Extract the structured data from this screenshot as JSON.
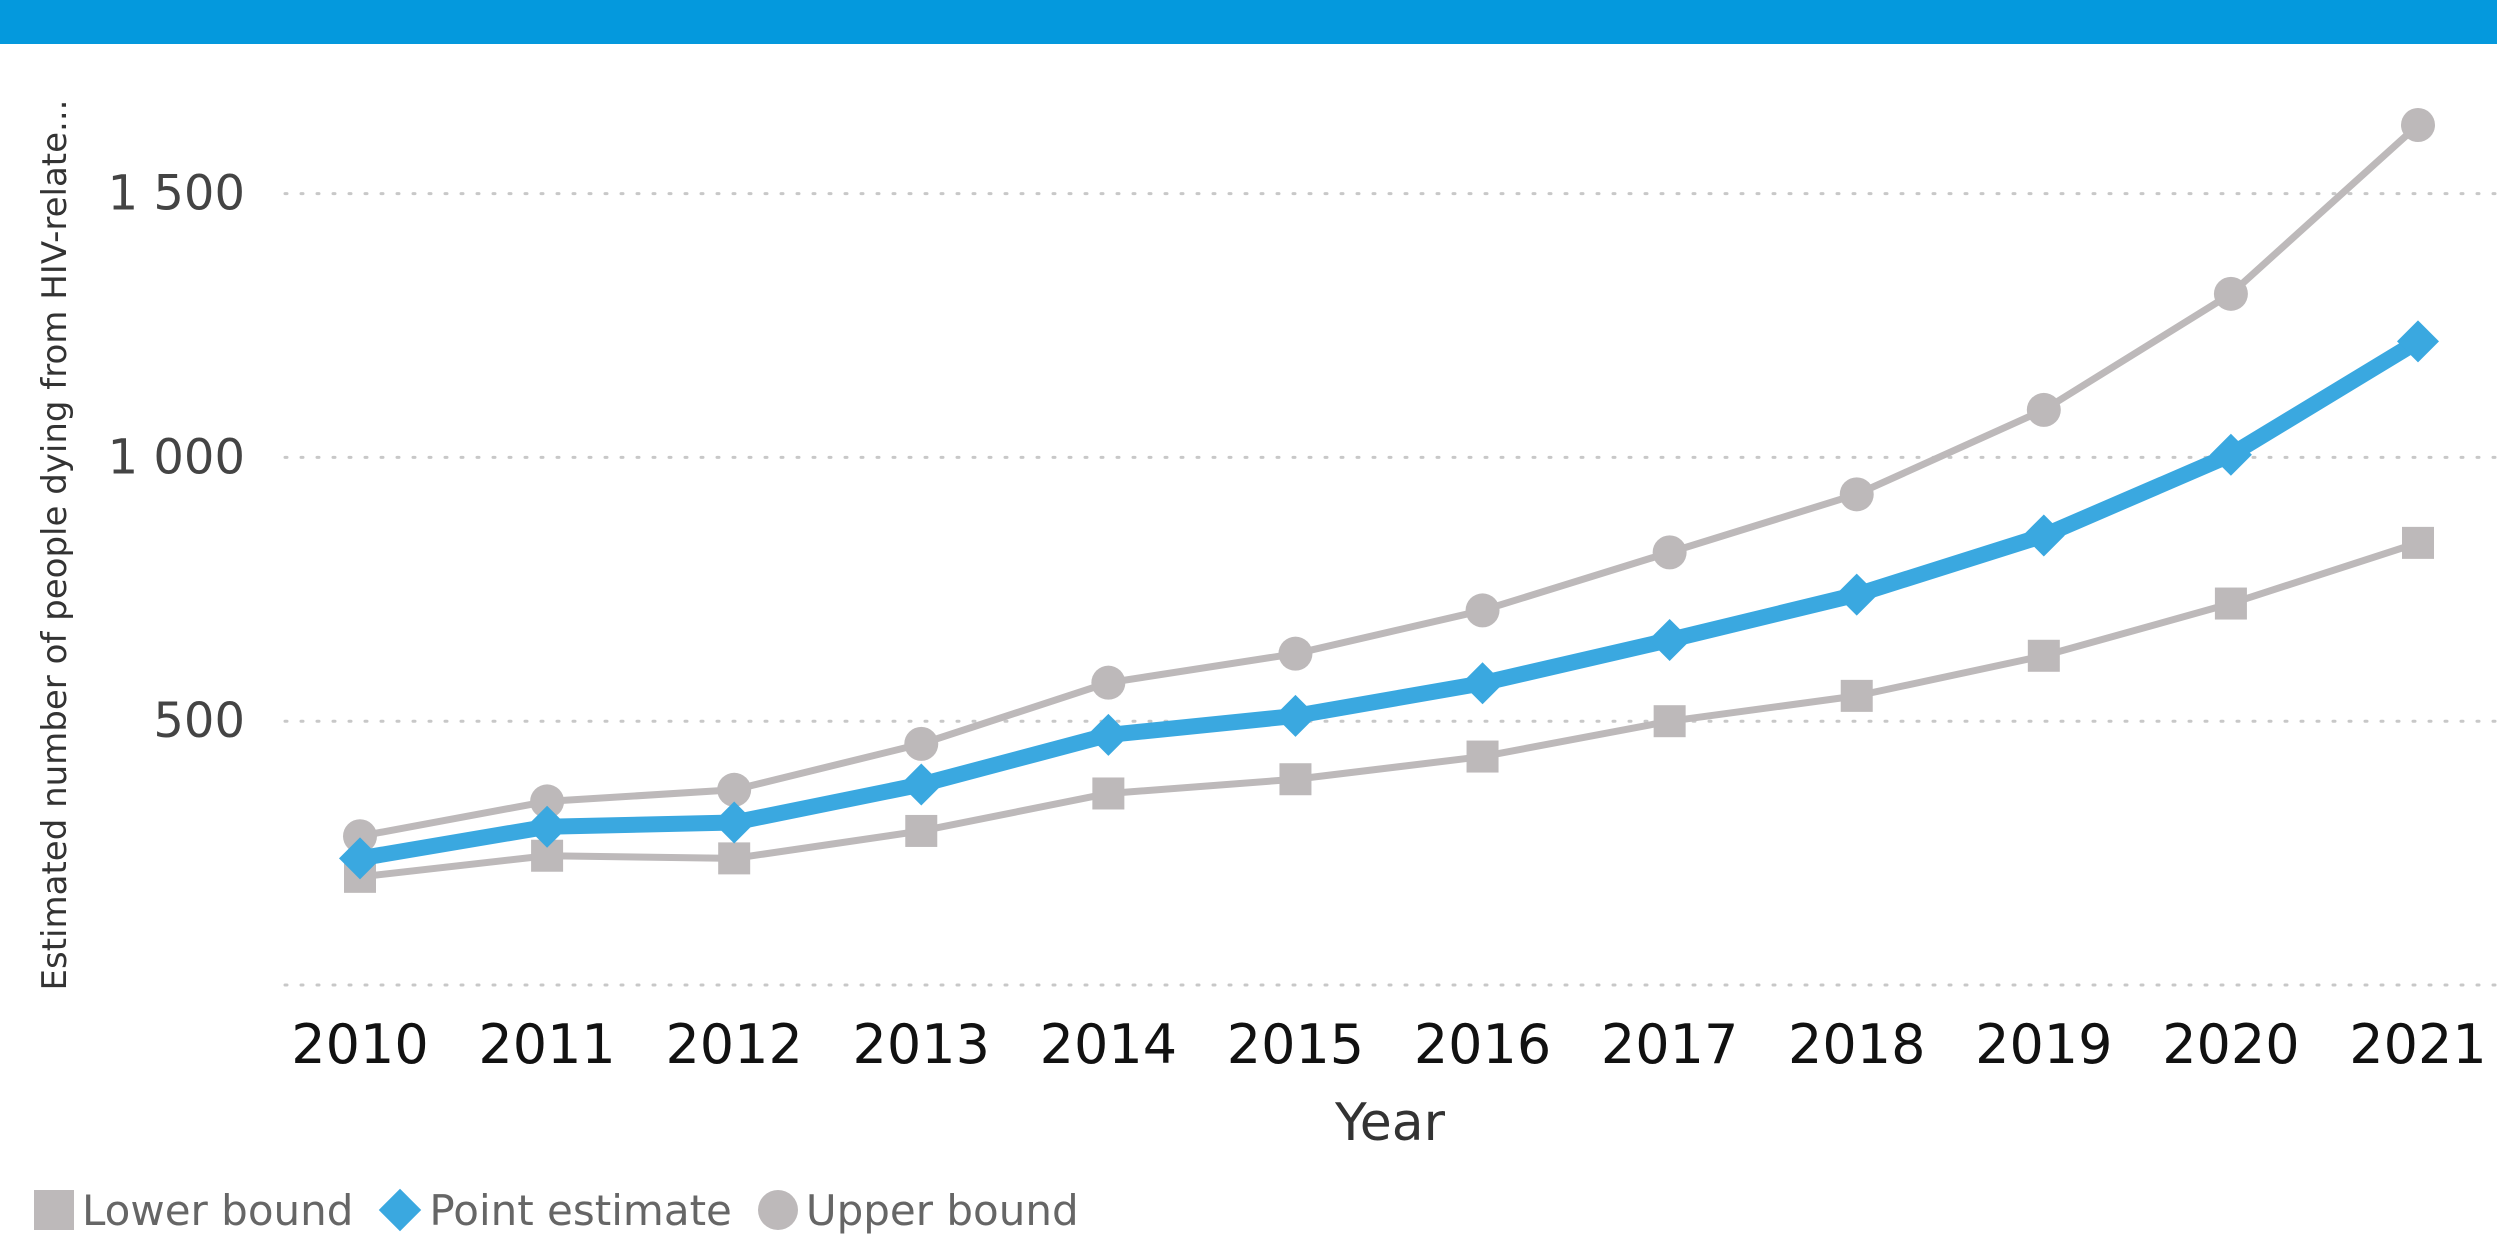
{
  "colors": {
    "header_bar": "#0499DD",
    "point_estimate": "#3AA8E0",
    "bounds": "#BDB9BA",
    "gridline": "#C8C8C8"
  },
  "chart_data": {
    "type": "line",
    "title": "",
    "xlabel": "Year",
    "ylabel": "Estimated number of people dying from HIV-relate...",
    "x": [
      "2010",
      "2011",
      "2012",
      "2013",
      "2014",
      "2015",
      "2016",
      "2017",
      "2018",
      "2019",
      "2020",
      "2021"
    ],
    "ylim": [
      0,
      1700
    ],
    "yticks": [
      0,
      500,
      1000,
      1500
    ],
    "ytick_labels": [
      "",
      "500",
      "1 000",
      "1 500"
    ],
    "grid": true,
    "legend_position": "bottom-left",
    "series": [
      {
        "name": "Lower bound",
        "marker": "square",
        "color": "#BDB9BA",
        "values": [
          205,
          245,
          240,
          292,
          363,
          390,
          433,
          500,
          548,
          624,
          723,
          838
        ]
      },
      {
        "name": "Point estimate",
        "marker": "diamond",
        "color": "#3AA8E0",
        "values": [
          240,
          300,
          308,
          380,
          474,
          510,
          572,
          654,
          740,
          852,
          1005,
          1220
        ]
      },
      {
        "name": "Upper bound",
        "marker": "circle",
        "color": "#BDB9BA",
        "values": [
          282,
          348,
          370,
          457,
          573,
          628,
          710,
          820,
          930,
          1090,
          1310,
          1630
        ]
      }
    ]
  }
}
